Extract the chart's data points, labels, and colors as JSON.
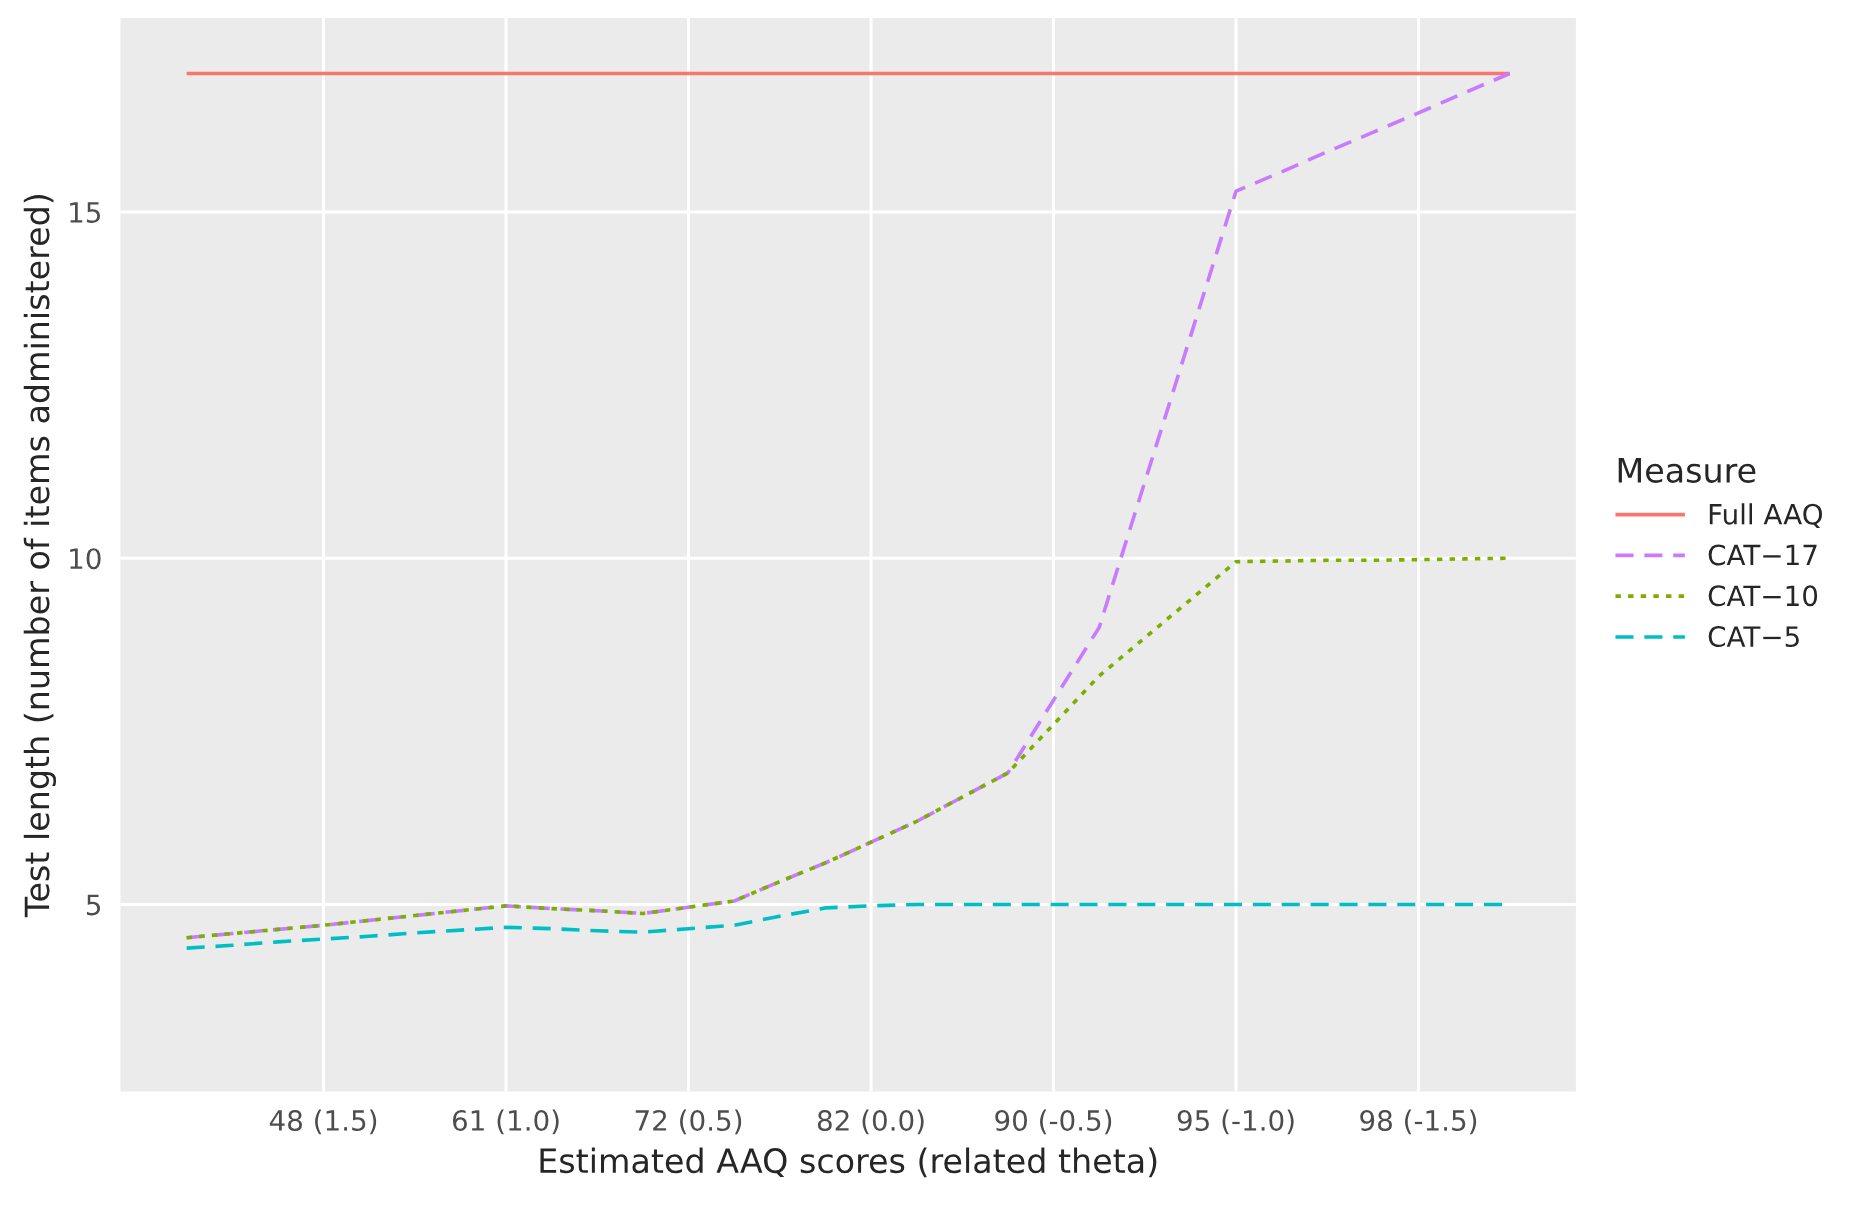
{
  "chart_data": {
    "type": "line",
    "xlabel": "Estimated AAQ scores (related theta)",
    "ylabel": "Test length (number of items administered)",
    "legend_title": "Measure",
    "legend": "right",
    "grid": true,
    "categories": [
      null,
      null,
      null,
      "48 (1.5)",
      null,
      null,
      null,
      "61 (1.0)",
      null,
      null,
      null,
      "72 (0.5)",
      null,
      null,
      null,
      "82 (0.0)",
      null,
      null,
      null,
      "90 (-0.5)",
      null,
      null,
      null,
      "95 (-1.0)",
      null,
      null,
      null,
      "98 (-1.5)",
      null,
      null
    ],
    "ylim": [
      2.3,
      17.8
    ],
    "yticks": [
      5,
      10,
      15
    ],
    "series": [
      {
        "name": "Full AAQ",
        "color": "#f8766d",
        "line_style": "solid",
        "values": [
          17,
          17,
          17,
          17,
          17,
          17,
          17,
          17,
          17,
          17,
          17,
          17,
          17,
          17,
          17,
          17,
          17,
          17,
          17,
          17,
          17,
          17,
          17,
          17,
          17,
          17,
          17,
          17,
          17,
          17
        ]
      },
      {
        "name": "CAT−17",
        "color": "#c77cff",
        "line_style": "dashed",
        "values": [
          4.52,
          4.58,
          4.64,
          4.7,
          4.77,
          4.84,
          4.91,
          4.98,
          4.94,
          4.91,
          4.87,
          4.96,
          5.05,
          5.33,
          5.6,
          5.9,
          6.2,
          6.55,
          6.9,
          7.95,
          9.0,
          11.1,
          13.2,
          15.3,
          15.58,
          15.87,
          16.15,
          16.43,
          16.72,
          17
        ]
      },
      {
        "name": "CAT−10",
        "color": "#7cae00",
        "line_style": "dotted",
        "values": [
          4.52,
          4.58,
          4.64,
          4.7,
          4.77,
          4.84,
          4.91,
          4.98,
          4.94,
          4.91,
          4.87,
          4.96,
          5.05,
          5.33,
          5.6,
          5.9,
          6.2,
          6.55,
          6.9,
          7.6,
          8.3,
          8.85,
          9.4,
          9.95,
          9.96,
          9.97,
          9.97,
          9.98,
          9.99,
          10
        ]
      },
      {
        "name": "CAT−5",
        "color": "#00bfc4",
        "line_style": "dashed",
        "values": [
          4.37,
          4.41,
          4.46,
          4.5,
          4.54,
          4.59,
          4.63,
          4.67,
          4.65,
          4.62,
          4.6,
          4.65,
          4.7,
          4.83,
          4.95,
          4.98,
          5.0,
          5.0,
          5.0,
          5.0,
          5.0,
          5.0,
          5.0,
          5.0,
          5.0,
          5.0,
          5.0,
          5.0,
          5.0,
          5.0
        ]
      }
    ]
  }
}
